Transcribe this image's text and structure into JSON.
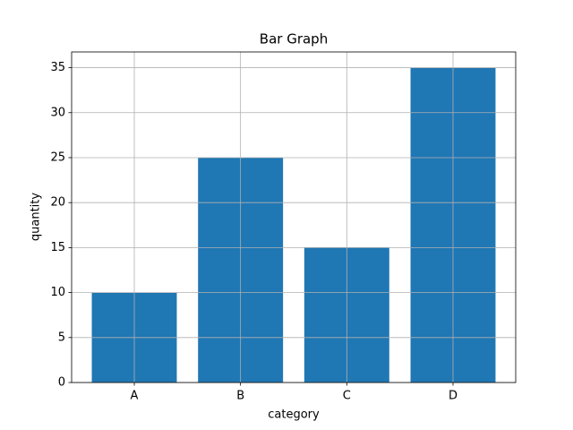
{
  "chart_data": {
    "type": "bar",
    "title": "Bar Graph",
    "x_label": "category",
    "y_label": "quantity",
    "categories": [
      "A",
      "B",
      "C",
      "D"
    ],
    "values": [
      10,
      25,
      15,
      35
    ],
    "color": "#1f77b4",
    "ylim": [
      0,
      36.75
    ],
    "yticks": [
      0,
      5,
      10,
      15,
      20,
      25,
      30,
      35
    ],
    "grid": true
  }
}
